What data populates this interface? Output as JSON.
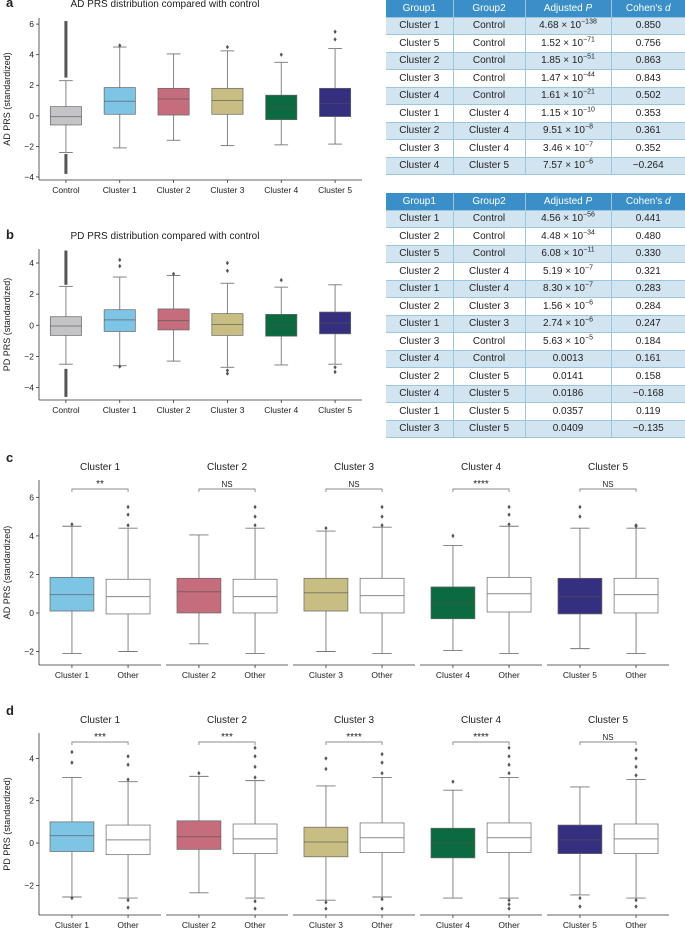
{
  "colors": {
    "control": "#c4c4c6",
    "cluster1": "#7ec4e4",
    "cluster2": "#c56d7d",
    "cluster3": "#c8bd82",
    "cluster4": "#0b6a3f",
    "cluster5": "#34307f",
    "other": "#ffffff",
    "table_header": "#3a8fc8",
    "table_alt": "#d3e4f1"
  },
  "chart_data": [
    {
      "panel": "a",
      "type": "boxplot",
      "title": "AD PRS distribution compared with control",
      "ylabel": "AD PRS (standardized)",
      "ylim": [
        -4.2,
        6.4
      ],
      "yticks": [
        -4,
        -2,
        0,
        2,
        4,
        6
      ],
      "categories": [
        "Control",
        "Cluster 1",
        "Cluster 2",
        "Cluster 3",
        "Cluster 4",
        "Cluster 5"
      ],
      "colorKeys": [
        "control",
        "cluster1",
        "cluster2",
        "cluster3",
        "cluster4",
        "cluster5"
      ],
      "boxes": [
        {
          "wl": -2.4,
          "q1": -0.6,
          "med": -0.05,
          "q3": 0.6,
          "wh": 2.3,
          "outHi": [
            2.5,
            6.2
          ],
          "outLo": [
            -2.5,
            -3.8
          ],
          "dense": true
        },
        {
          "wl": -2.1,
          "q1": 0.1,
          "med": 0.95,
          "q3": 1.85,
          "wh": 4.5,
          "outHi": [
            4.6
          ],
          "outLo": []
        },
        {
          "wl": -1.6,
          "q1": 0.05,
          "med": 1.1,
          "q3": 1.8,
          "wh": 4.05,
          "outHi": [],
          "outLo": []
        },
        {
          "wl": -1.95,
          "q1": 0.1,
          "med": 1.0,
          "q3": 1.8,
          "wh": 4.25,
          "outHi": [
            4.5
          ],
          "outLo": []
        },
        {
          "wl": -1.9,
          "q1": -0.25,
          "med": 0.55,
          "q3": 1.35,
          "wh": 3.5,
          "outHi": [
            4.0
          ],
          "outLo": []
        },
        {
          "wl": -1.85,
          "q1": -0.05,
          "med": 0.8,
          "q3": 1.8,
          "wh": 4.4,
          "outHi": [
            5.0,
            5.5
          ],
          "outLo": []
        }
      ]
    },
    {
      "panel": "b",
      "type": "boxplot",
      "title": "PD PRS distribution compared with control",
      "ylabel": "PD PRS (standardized)",
      "ylim": [
        -4.8,
        4.9
      ],
      "yticks": [
        -4,
        -2,
        0,
        2,
        4
      ],
      "categories": [
        "Control",
        "Cluster 1",
        "Cluster 2",
        "Cluster 3",
        "Cluster 4",
        "Cluster 5"
      ],
      "colorKeys": [
        "control",
        "cluster1",
        "cluster2",
        "cluster3",
        "cluster4",
        "cluster5"
      ],
      "boxes": [
        {
          "wl": -2.5,
          "q1": -0.65,
          "med": -0.05,
          "q3": 0.55,
          "wh": 2.5,
          "outHi": [
            2.6,
            4.8
          ],
          "outLo": [
            -2.8,
            -4.6
          ],
          "dense": true
        },
        {
          "wl": -2.6,
          "q1": -0.4,
          "med": 0.35,
          "q3": 1.0,
          "wh": 3.1,
          "outHi": [
            3.8,
            4.2
          ],
          "outLo": [
            -2.65
          ]
        },
        {
          "wl": -2.3,
          "q1": -0.3,
          "med": 0.3,
          "q3": 1.05,
          "wh": 3.2,
          "outHi": [
            3.3
          ],
          "outLo": []
        },
        {
          "wl": -2.7,
          "q1": -0.65,
          "med": 0.05,
          "q3": 0.75,
          "wh": 2.7,
          "outHi": [
            3.5,
            4.0
          ],
          "outLo": [
            -2.9,
            -3.1
          ]
        },
        {
          "wl": -2.55,
          "q1": -0.7,
          "med": 0.0,
          "q3": 0.7,
          "wh": 2.45,
          "outHi": [
            2.9
          ],
          "outLo": []
        },
        {
          "wl": -2.5,
          "q1": -0.55,
          "med": 0.15,
          "q3": 0.85,
          "wh": 2.6,
          "outHi": [],
          "outLo": [
            -2.7,
            -3.0
          ]
        }
      ]
    },
    {
      "panel": "c",
      "type": "boxplot-pairs",
      "ylabel": "AD PRS (standardized)",
      "ylim": [
        -2.7,
        6.9
      ],
      "yticks": [
        -2,
        0,
        2,
        4,
        6
      ],
      "groups": [
        {
          "title": "Cluster 1",
          "labels": [
            "Cluster 1",
            "Other"
          ],
          "sig": "**",
          "colorKey": "cluster1",
          "boxes": [
            {
              "wl": -2.1,
              "q1": 0.1,
              "med": 0.95,
              "q3": 1.85,
              "wh": 4.5,
              "outHi": [
                4.6
              ],
              "outLo": []
            },
            {
              "wl": -2.0,
              "q1": -0.05,
              "med": 0.85,
              "q3": 1.75,
              "wh": 4.4,
              "outHi": [
                4.55,
                5.1,
                5.5
              ],
              "outLo": []
            }
          ]
        },
        {
          "title": "Cluster 2",
          "labels": [
            "Cluster 2",
            "Other"
          ],
          "sig": "NS",
          "colorKey": "cluster2",
          "boxes": [
            {
              "wl": -1.6,
              "q1": 0.0,
              "med": 1.1,
              "q3": 1.8,
              "wh": 4.05,
              "outHi": [],
              "outLo": []
            },
            {
              "wl": -2.1,
              "q1": 0.0,
              "med": 0.85,
              "q3": 1.75,
              "wh": 4.4,
              "outHi": [
                4.55,
                5.0,
                5.5
              ],
              "outLo": []
            }
          ]
        },
        {
          "title": "Cluster 3",
          "labels": [
            "Cluster 3",
            "Other"
          ],
          "sig": "NS",
          "colorKey": "cluster3",
          "boxes": [
            {
              "wl": -2.0,
              "q1": 0.1,
              "med": 1.05,
              "q3": 1.8,
              "wh": 4.25,
              "outHi": [
                4.4
              ],
              "outLo": []
            },
            {
              "wl": -2.1,
              "q1": 0.0,
              "med": 0.9,
              "q3": 1.8,
              "wh": 4.45,
              "outHi": [
                4.55,
                5.0,
                5.5
              ],
              "outLo": []
            }
          ]
        },
        {
          "title": "Cluster 4",
          "labels": [
            "Cluster 4",
            "Other"
          ],
          "sig": "****",
          "colorKey": "cluster4",
          "boxes": [
            {
              "wl": -1.95,
              "q1": -0.3,
              "med": 0.5,
              "q3": 1.35,
              "wh": 3.5,
              "outHi": [
                4.0
              ],
              "outLo": []
            },
            {
              "wl": -2.1,
              "q1": 0.05,
              "med": 1.0,
              "q3": 1.85,
              "wh": 4.5,
              "outHi": [
                4.6,
                5.1,
                5.5
              ],
              "outLo": []
            }
          ]
        },
        {
          "title": "Cluster 5",
          "labels": [
            "Cluster 5",
            "Other"
          ],
          "sig": "NS",
          "colorKey": "cluster5",
          "boxes": [
            {
              "wl": -1.85,
              "q1": -0.05,
              "med": 0.85,
              "q3": 1.8,
              "wh": 4.4,
              "outHi": [
                5.0,
                5.5
              ],
              "outLo": []
            },
            {
              "wl": -2.1,
              "q1": 0.0,
              "med": 0.95,
              "q3": 1.8,
              "wh": 4.4,
              "outHi": [
                4.5,
                4.55
              ],
              "outLo": []
            }
          ]
        }
      ]
    },
    {
      "panel": "d",
      "type": "boxplot-pairs",
      "ylabel": "PD PRS (standardized)",
      "ylim": [
        -3.4,
        5.2
      ],
      "yticks": [
        -2,
        0,
        2,
        4
      ],
      "groups": [
        {
          "title": "Cluster 1",
          "labels": [
            "Cluster 1",
            "Other"
          ],
          "sig": "***",
          "colorKey": "cluster1",
          "boxes": [
            {
              "wl": -2.55,
              "q1": -0.4,
              "med": 0.35,
              "q3": 1.0,
              "wh": 3.1,
              "outHi": [
                3.8,
                4.3
              ],
              "outLo": [
                -2.6
              ]
            },
            {
              "wl": -2.6,
              "q1": -0.55,
              "med": 0.15,
              "q3": 0.85,
              "wh": 2.9,
              "outHi": [
                3.0,
                3.7,
                4.1
              ],
              "outLo": [
                -2.7,
                -3.05
              ]
            }
          ]
        },
        {
          "title": "Cluster 2",
          "labels": [
            "Cluster 2",
            "Other"
          ],
          "sig": "***",
          "colorKey": "cluster2",
          "boxes": [
            {
              "wl": -2.35,
              "q1": -0.3,
              "med": 0.3,
              "q3": 1.05,
              "wh": 3.15,
              "outHi": [
                3.3
              ],
              "outLo": []
            },
            {
              "wl": -2.6,
              "q1": -0.5,
              "med": 0.2,
              "q3": 0.9,
              "wh": 2.95,
              "outHi": [
                3.1,
                3.6,
                4.1,
                4.5
              ],
              "outLo": [
                -2.75,
                -3.1
              ]
            }
          ]
        },
        {
          "title": "Cluster 3",
          "labels": [
            "Cluster 3",
            "Other"
          ],
          "sig": "****",
          "colorKey": "cluster3",
          "boxes": [
            {
              "wl": -2.7,
              "q1": -0.65,
              "med": 0.05,
              "q3": 0.75,
              "wh": 2.7,
              "outHi": [
                3.5,
                4.0
              ],
              "outLo": [
                -2.8,
                -3.1
              ]
            },
            {
              "wl": -2.55,
              "q1": -0.45,
              "med": 0.25,
              "q3": 0.95,
              "wh": 3.1,
              "outHi": [
                3.3,
                3.8,
                4.2
              ],
              "outLo": [
                -2.65,
                -3.1
              ]
            }
          ]
        },
        {
          "title": "Cluster 4",
          "labels": [
            "Cluster 4",
            "Other"
          ],
          "sig": "****",
          "colorKey": "cluster4",
          "boxes": [
            {
              "wl": -2.6,
              "q1": -0.7,
              "med": 0.0,
              "q3": 0.7,
              "wh": 2.5,
              "outHi": [
                2.9
              ],
              "outLo": []
            },
            {
              "wl": -2.6,
              "q1": -0.45,
              "med": 0.25,
              "q3": 0.95,
              "wh": 3.1,
              "outHi": [
                3.3,
                3.7,
                4.1,
                4.5
              ],
              "outLo": [
                -2.7,
                -2.9,
                -3.1
              ]
            }
          ]
        },
        {
          "title": "Cluster 5",
          "labels": [
            "Cluster 5",
            "Other"
          ],
          "sig": "NS",
          "colorKey": "cluster5",
          "boxes": [
            {
              "wl": -2.45,
              "q1": -0.5,
              "med": 0.15,
              "q3": 0.85,
              "wh": 2.65,
              "outHi": [],
              "outLo": [
                -2.6,
                -3.0
              ]
            },
            {
              "wl": -2.6,
              "q1": -0.5,
              "med": 0.2,
              "q3": 0.9,
              "wh": 3.0,
              "outHi": [
                3.2,
                3.6,
                4.0,
                4.4
              ],
              "outLo": [
                -2.7,
                -3.0
              ]
            }
          ]
        }
      ]
    }
  ],
  "panel_labels": {
    "a": "a",
    "b": "b",
    "c": "c",
    "d": "d"
  },
  "table_a": {
    "headers": [
      "Group1",
      "Group2",
      "Adjusted P",
      "Cohen's d"
    ],
    "rows": [
      {
        "g1": "Cluster 1",
        "g2": "Control",
        "p": "4.68 × 10",
        "pe": "−138",
        "d": "0.850"
      },
      {
        "g1": "Cluster 5",
        "g2": "Control",
        "p": "1.52 × 10",
        "pe": "−71",
        "d": "0.756"
      },
      {
        "g1": "Cluster 2",
        "g2": "Control",
        "p": "1.85 × 10",
        "pe": "−51",
        "d": "0.863"
      },
      {
        "g1": "Cluster 3",
        "g2": "Control",
        "p": "1.47 × 10",
        "pe": "−44",
        "d": "0.843"
      },
      {
        "g1": "Cluster 4",
        "g2": "Control",
        "p": "1.61 × 10",
        "pe": "−21",
        "d": "0.502"
      },
      {
        "g1": "Cluster 1",
        "g2": "Cluster 4",
        "p": "1.15 × 10",
        "pe": "−10",
        "d": "0.353"
      },
      {
        "g1": "Cluster 2",
        "g2": "Cluster 4",
        "p": "9.51 × 10",
        "pe": "−8",
        "d": "0.361"
      },
      {
        "g1": "Cluster 3",
        "g2": "Cluster 4",
        "p": "3.46 × 10",
        "pe": "−7",
        "d": "0.352"
      },
      {
        "g1": "Cluster 4",
        "g2": "Cluster 5",
        "p": "7.57 × 10",
        "pe": "−6",
        "d": "−0.264"
      }
    ]
  },
  "table_b": {
    "headers": [
      "Group1",
      "Group2",
      "Adjusted P",
      "Cohen's d"
    ],
    "rows": [
      {
        "g1": "Cluster 1",
        "g2": "Control",
        "p": "4.56 × 10",
        "pe": "−56",
        "d": "0.441"
      },
      {
        "g1": "Cluster 2",
        "g2": "Control",
        "p": "4.48 × 10",
        "pe": "−34",
        "d": "0.480"
      },
      {
        "g1": "Cluster 5",
        "g2": "Control",
        "p": "6.08 × 10",
        "pe": "−11",
        "d": "0.330"
      },
      {
        "g1": "Cluster 2",
        "g2": "Cluster 4",
        "p": "5.19 × 10",
        "pe": "−7",
        "d": "0.321"
      },
      {
        "g1": "Cluster 1",
        "g2": "Cluster 4",
        "p": "8.30 × 10",
        "pe": "−7",
        "d": "0.283"
      },
      {
        "g1": "Cluster 2",
        "g2": "Cluster 3",
        "p": "1.56 × 10",
        "pe": "−6",
        "d": "0.284"
      },
      {
        "g1": "Cluster 1",
        "g2": "Cluster 3",
        "p": "2.74 × 10",
        "pe": "−6",
        "d": "0.247"
      },
      {
        "g1": "Cluster 3",
        "g2": "Control",
        "p": "5.63 × 10",
        "pe": "−5",
        "d": "0.184"
      },
      {
        "g1": "Cluster 4",
        "g2": "Control",
        "p": "0.0013",
        "pe": "",
        "d": "0.161"
      },
      {
        "g1": "Cluster 2",
        "g2": "Cluster 5",
        "p": "0.0141",
        "pe": "",
        "d": "0.158"
      },
      {
        "g1": "Cluster 4",
        "g2": "Cluster 5",
        "p": "0.0186",
        "pe": "",
        "d": "−0.168"
      },
      {
        "g1": "Cluster 1",
        "g2": "Cluster 5",
        "p": "0.0357",
        "pe": "",
        "d": "0.119"
      },
      {
        "g1": "Cluster 3",
        "g2": "Cluster 5",
        "p": "0.0409",
        "pe": "",
        "d": "−0.135"
      }
    ]
  }
}
